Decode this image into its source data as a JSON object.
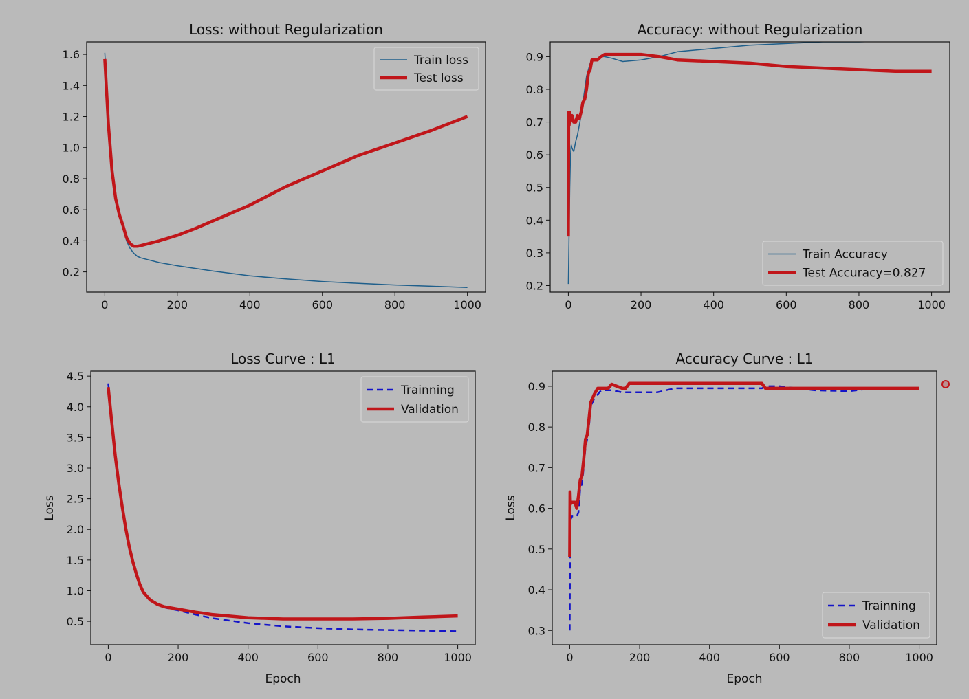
{
  "colors": {
    "background": "#bababa",
    "train_line": "#1f5f8b",
    "test_line": "#c0161a",
    "training_dashed": "#1414c8",
    "validation": "#c0161a"
  },
  "chart_data": [
    {
      "type": "line",
      "title": "Loss: without Regularization",
      "xlabel": "",
      "ylabel": "",
      "xlim": [
        -50,
        1050
      ],
      "ylim": [
        0.07,
        1.68
      ],
      "xticks": [
        0,
        200,
        400,
        600,
        800,
        1000
      ],
      "yticks": [
        0.2,
        0.4,
        0.6,
        0.8,
        1.0,
        1.2,
        1.4,
        1.6
      ],
      "legend": "top-right",
      "series": [
        {
          "name": "Train loss",
          "style": "thin",
          "x": [
            0,
            10,
            20,
            30,
            40,
            50,
            60,
            70,
            80,
            90,
            100,
            150,
            200,
            300,
            400,
            500,
            600,
            700,
            800,
            900,
            1000
          ],
          "y": [
            1.61,
            1.2,
            0.9,
            0.7,
            0.58,
            0.48,
            0.4,
            0.35,
            0.32,
            0.3,
            0.29,
            0.26,
            0.24,
            0.205,
            0.175,
            0.155,
            0.138,
            0.126,
            0.116,
            0.108,
            0.1
          ]
        },
        {
          "name": "Test loss",
          "style": "thick",
          "x": [
            0,
            10,
            20,
            30,
            40,
            50,
            60,
            70,
            80,
            90,
            100,
            150,
            200,
            250,
            300,
            400,
            500,
            600,
            700,
            800,
            900,
            1000
          ],
          "y": [
            1.57,
            1.15,
            0.85,
            0.67,
            0.57,
            0.5,
            0.42,
            0.38,
            0.365,
            0.365,
            0.37,
            0.4,
            0.435,
            0.48,
            0.53,
            0.63,
            0.75,
            0.85,
            0.95,
            1.03,
            1.11,
            1.2
          ]
        }
      ]
    },
    {
      "type": "line",
      "title": "Accuracy: without Regularization",
      "xlabel": "",
      "ylabel": "",
      "xlim": [
        -50,
        1050
      ],
      "ylim": [
        0.18,
        0.945
      ],
      "xticks": [
        0,
        200,
        400,
        600,
        800,
        1000
      ],
      "yticks": [
        0.2,
        0.3,
        0.4,
        0.5,
        0.6,
        0.7,
        0.8,
        0.9
      ],
      "legend": "lower-right",
      "series": [
        {
          "name": "Train Accuracy",
          "style": "thin",
          "x": [
            0,
            2,
            4,
            6,
            8,
            10,
            15,
            20,
            25,
            30,
            35,
            40,
            45,
            50,
            55,
            60,
            70,
            80,
            90,
            100,
            120,
            150,
            200,
            250,
            300,
            400,
            500,
            600,
            700,
            800,
            900,
            1000
          ],
          "y": [
            0.205,
            0.36,
            0.5,
            0.6,
            0.63,
            0.62,
            0.61,
            0.64,
            0.66,
            0.69,
            0.72,
            0.76,
            0.8,
            0.84,
            0.86,
            0.88,
            0.89,
            0.895,
            0.9,
            0.9,
            0.895,
            0.885,
            0.89,
            0.9,
            0.915,
            0.925,
            0.935,
            0.94,
            0.945,
            0.945,
            0.948,
            0.948
          ]
        },
        {
          "name": "Test Accuracy=0.827",
          "style": "thick",
          "x": [
            0,
            1,
            2,
            3,
            4,
            5,
            10,
            15,
            20,
            25,
            30,
            35,
            40,
            45,
            50,
            55,
            60,
            65,
            70,
            80,
            90,
            100,
            150,
            200,
            250,
            300,
            400,
            500,
            600,
            700,
            800,
            900,
            1000
          ],
          "y": [
            0.35,
            0.73,
            0.69,
            0.7,
            0.73,
            0.7,
            0.72,
            0.7,
            0.7,
            0.72,
            0.71,
            0.73,
            0.76,
            0.77,
            0.8,
            0.85,
            0.86,
            0.89,
            0.89,
            0.89,
            0.9,
            0.907,
            0.907,
            0.907,
            0.9,
            0.89,
            0.885,
            0.88,
            0.87,
            0.865,
            0.86,
            0.855,
            0.855
          ]
        }
      ]
    },
    {
      "type": "line",
      "title": "Loss Curve : L1",
      "xlabel": "Epoch",
      "ylabel": "Loss",
      "xlim": [
        -50,
        1050
      ],
      "ylim": [
        0.12,
        4.58
      ],
      "xticks": [
        0,
        200,
        400,
        600,
        800,
        1000
      ],
      "yticks": [
        0.5,
        1.0,
        1.5,
        2.0,
        2.5,
        3.0,
        3.5,
        4.0,
        4.5
      ],
      "legend": "top-right",
      "series": [
        {
          "name": "Trainning",
          "style": "dashed",
          "x": [
            0,
            10,
            20,
            30,
            40,
            50,
            60,
            70,
            80,
            90,
            100,
            120,
            140,
            160,
            180,
            200,
            250,
            300,
            400,
            500,
            600,
            700,
            800,
            900,
            1000
          ],
          "y": [
            4.38,
            3.8,
            3.25,
            2.8,
            2.4,
            2.05,
            1.75,
            1.5,
            1.3,
            1.12,
            0.99,
            0.85,
            0.78,
            0.73,
            0.7,
            0.68,
            0.61,
            0.55,
            0.47,
            0.42,
            0.39,
            0.37,
            0.36,
            0.35,
            0.34
          ]
        },
        {
          "name": "Validation",
          "style": "thick",
          "x": [
            0,
            10,
            20,
            30,
            40,
            50,
            60,
            70,
            80,
            90,
            100,
            120,
            140,
            160,
            180,
            200,
            250,
            300,
            400,
            500,
            600,
            700,
            800,
            900,
            1000
          ],
          "y": [
            4.32,
            3.75,
            3.2,
            2.75,
            2.37,
            2.02,
            1.72,
            1.48,
            1.28,
            1.11,
            0.98,
            0.85,
            0.78,
            0.74,
            0.72,
            0.7,
            0.65,
            0.61,
            0.56,
            0.54,
            0.54,
            0.54,
            0.55,
            0.57,
            0.59
          ]
        }
      ]
    },
    {
      "type": "line",
      "title": "Accuracy Curve : L1",
      "xlabel": "Epoch",
      "ylabel": "Loss",
      "xlim": [
        -50,
        1050
      ],
      "ylim": [
        0.265,
        0.937
      ],
      "xticks": [
        0,
        200,
        400,
        600,
        800,
        1000
      ],
      "yticks": [
        0.3,
        0.4,
        0.5,
        0.6,
        0.7,
        0.8,
        0.9
      ],
      "legend": "lower-right",
      "series": [
        {
          "name": "Trainning",
          "style": "dashed",
          "x": [
            0,
            1,
            2,
            4,
            6,
            10,
            15,
            20,
            25,
            30,
            35,
            40,
            45,
            50,
            55,
            60,
            70,
            80,
            90,
            100,
            120,
            150,
            200,
            250,
            300,
            400,
            500,
            550,
            560,
            600,
            650,
            700,
            800,
            850
          ],
          "y": [
            0.3,
            0.48,
            0.58,
            0.575,
            0.58,
            0.58,
            0.58,
            0.58,
            0.59,
            0.65,
            0.66,
            0.7,
            0.75,
            0.77,
            0.8,
            0.85,
            0.87,
            0.88,
            0.89,
            0.89,
            0.89,
            0.885,
            0.885,
            0.885,
            0.895,
            0.895,
            0.895,
            0.895,
            0.9,
            0.9,
            0.895,
            0.89,
            0.888,
            0.893
          ]
        },
        {
          "name": "Validation",
          "style": "thick",
          "x": [
            0,
            1,
            2,
            3,
            5,
            10,
            15,
            20,
            25,
            30,
            35,
            40,
            45,
            50,
            55,
            60,
            70,
            80,
            90,
            100,
            110,
            120,
            150,
            160,
            170,
            200,
            300,
            400,
            500,
            550,
            560,
            600,
            700,
            800,
            900,
            1000
          ],
          "y": [
            0.48,
            0.64,
            0.61,
            0.615,
            0.615,
            0.615,
            0.615,
            0.6,
            0.63,
            0.67,
            0.68,
            0.72,
            0.77,
            0.78,
            0.82,
            0.86,
            0.88,
            0.895,
            0.895,
            0.895,
            0.895,
            0.905,
            0.895,
            0.895,
            0.907,
            0.907,
            0.907,
            0.907,
            0.907,
            0.907,
            0.895,
            0.895,
            0.895,
            0.895,
            0.895,
            0.895
          ]
        }
      ]
    }
  ]
}
